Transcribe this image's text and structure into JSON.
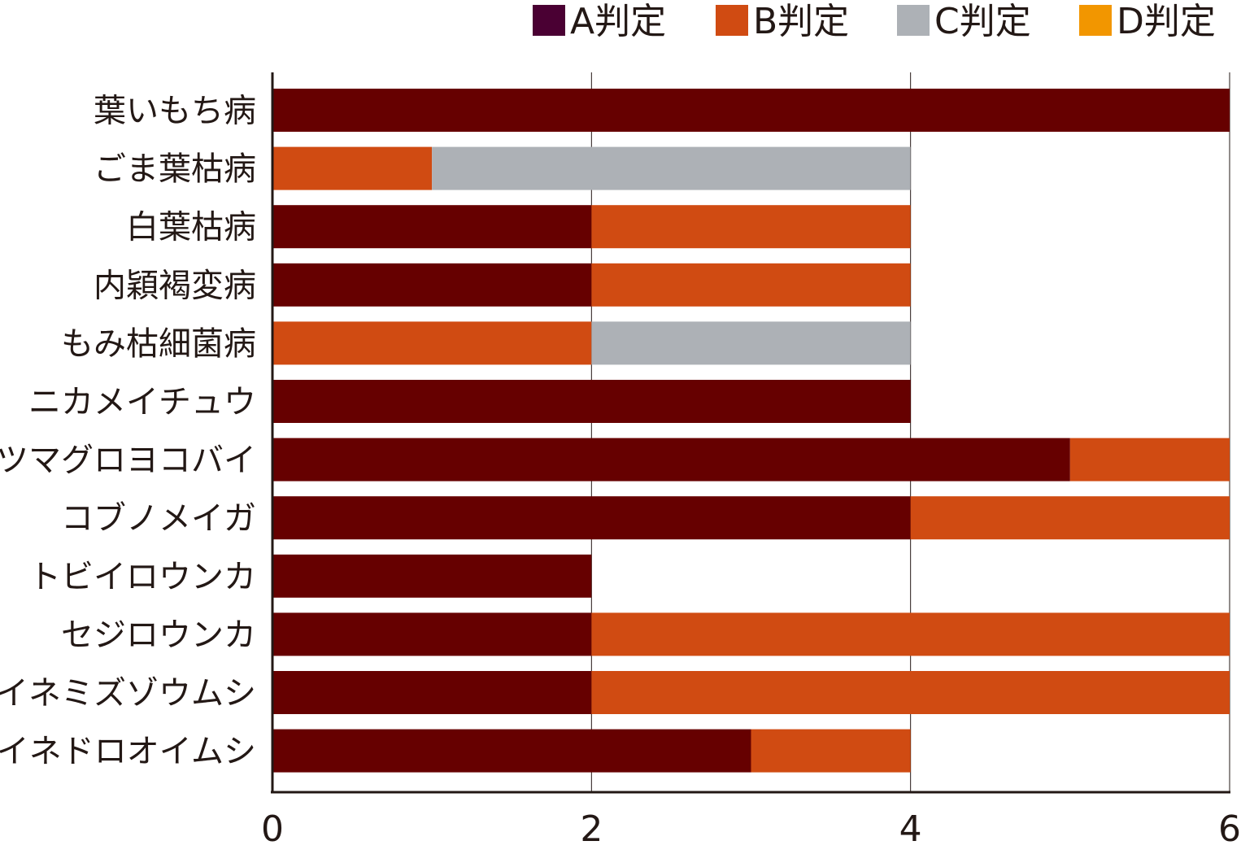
{
  "chart_data": {
    "type": "bar",
    "orientation": "horizontal",
    "stacked": true,
    "title": "",
    "xlabel": "",
    "ylabel": "",
    "xlim": [
      0,
      6
    ],
    "xticks": [
      "0",
      "2",
      "4",
      "6"
    ],
    "grid": true,
    "legend_position": "top-right",
    "categories": [
      "葉いもち病",
      "ごま葉枯病",
      "白葉枯病",
      "内穎褐変病",
      "もみ枯細菌病",
      "ニカメイチュウ",
      "ツマグロヨコバイ",
      "コブノメイガ",
      "トビイロウンカ",
      "セジロウンカ",
      "イネミズゾウムシ",
      "イネドロオイムシ"
    ],
    "series": [
      {
        "name": "A判定",
        "color": "#660000",
        "legend_color": "#4a0033",
        "values": [
          6,
          0,
          2,
          2,
          0,
          4,
          5,
          4,
          2,
          2,
          2,
          3
        ]
      },
      {
        "name": "B判定",
        "color": "#d04b12",
        "legend_color": "#d04b12",
        "values": [
          0,
          1,
          2,
          2,
          2,
          0,
          1,
          2,
          0,
          4,
          4,
          1
        ]
      },
      {
        "name": "C判定",
        "color": "#adb1b6",
        "legend_color": "#adb1b6",
        "values": [
          0,
          3,
          0,
          0,
          2,
          0,
          0,
          0,
          0,
          0,
          0,
          0
        ]
      },
      {
        "name": "D判定",
        "color": "#f29600",
        "legend_color": "#f29600",
        "values": [
          0,
          0,
          0,
          0,
          0,
          0,
          0,
          0,
          0,
          0,
          0,
          0
        ]
      }
    ]
  }
}
